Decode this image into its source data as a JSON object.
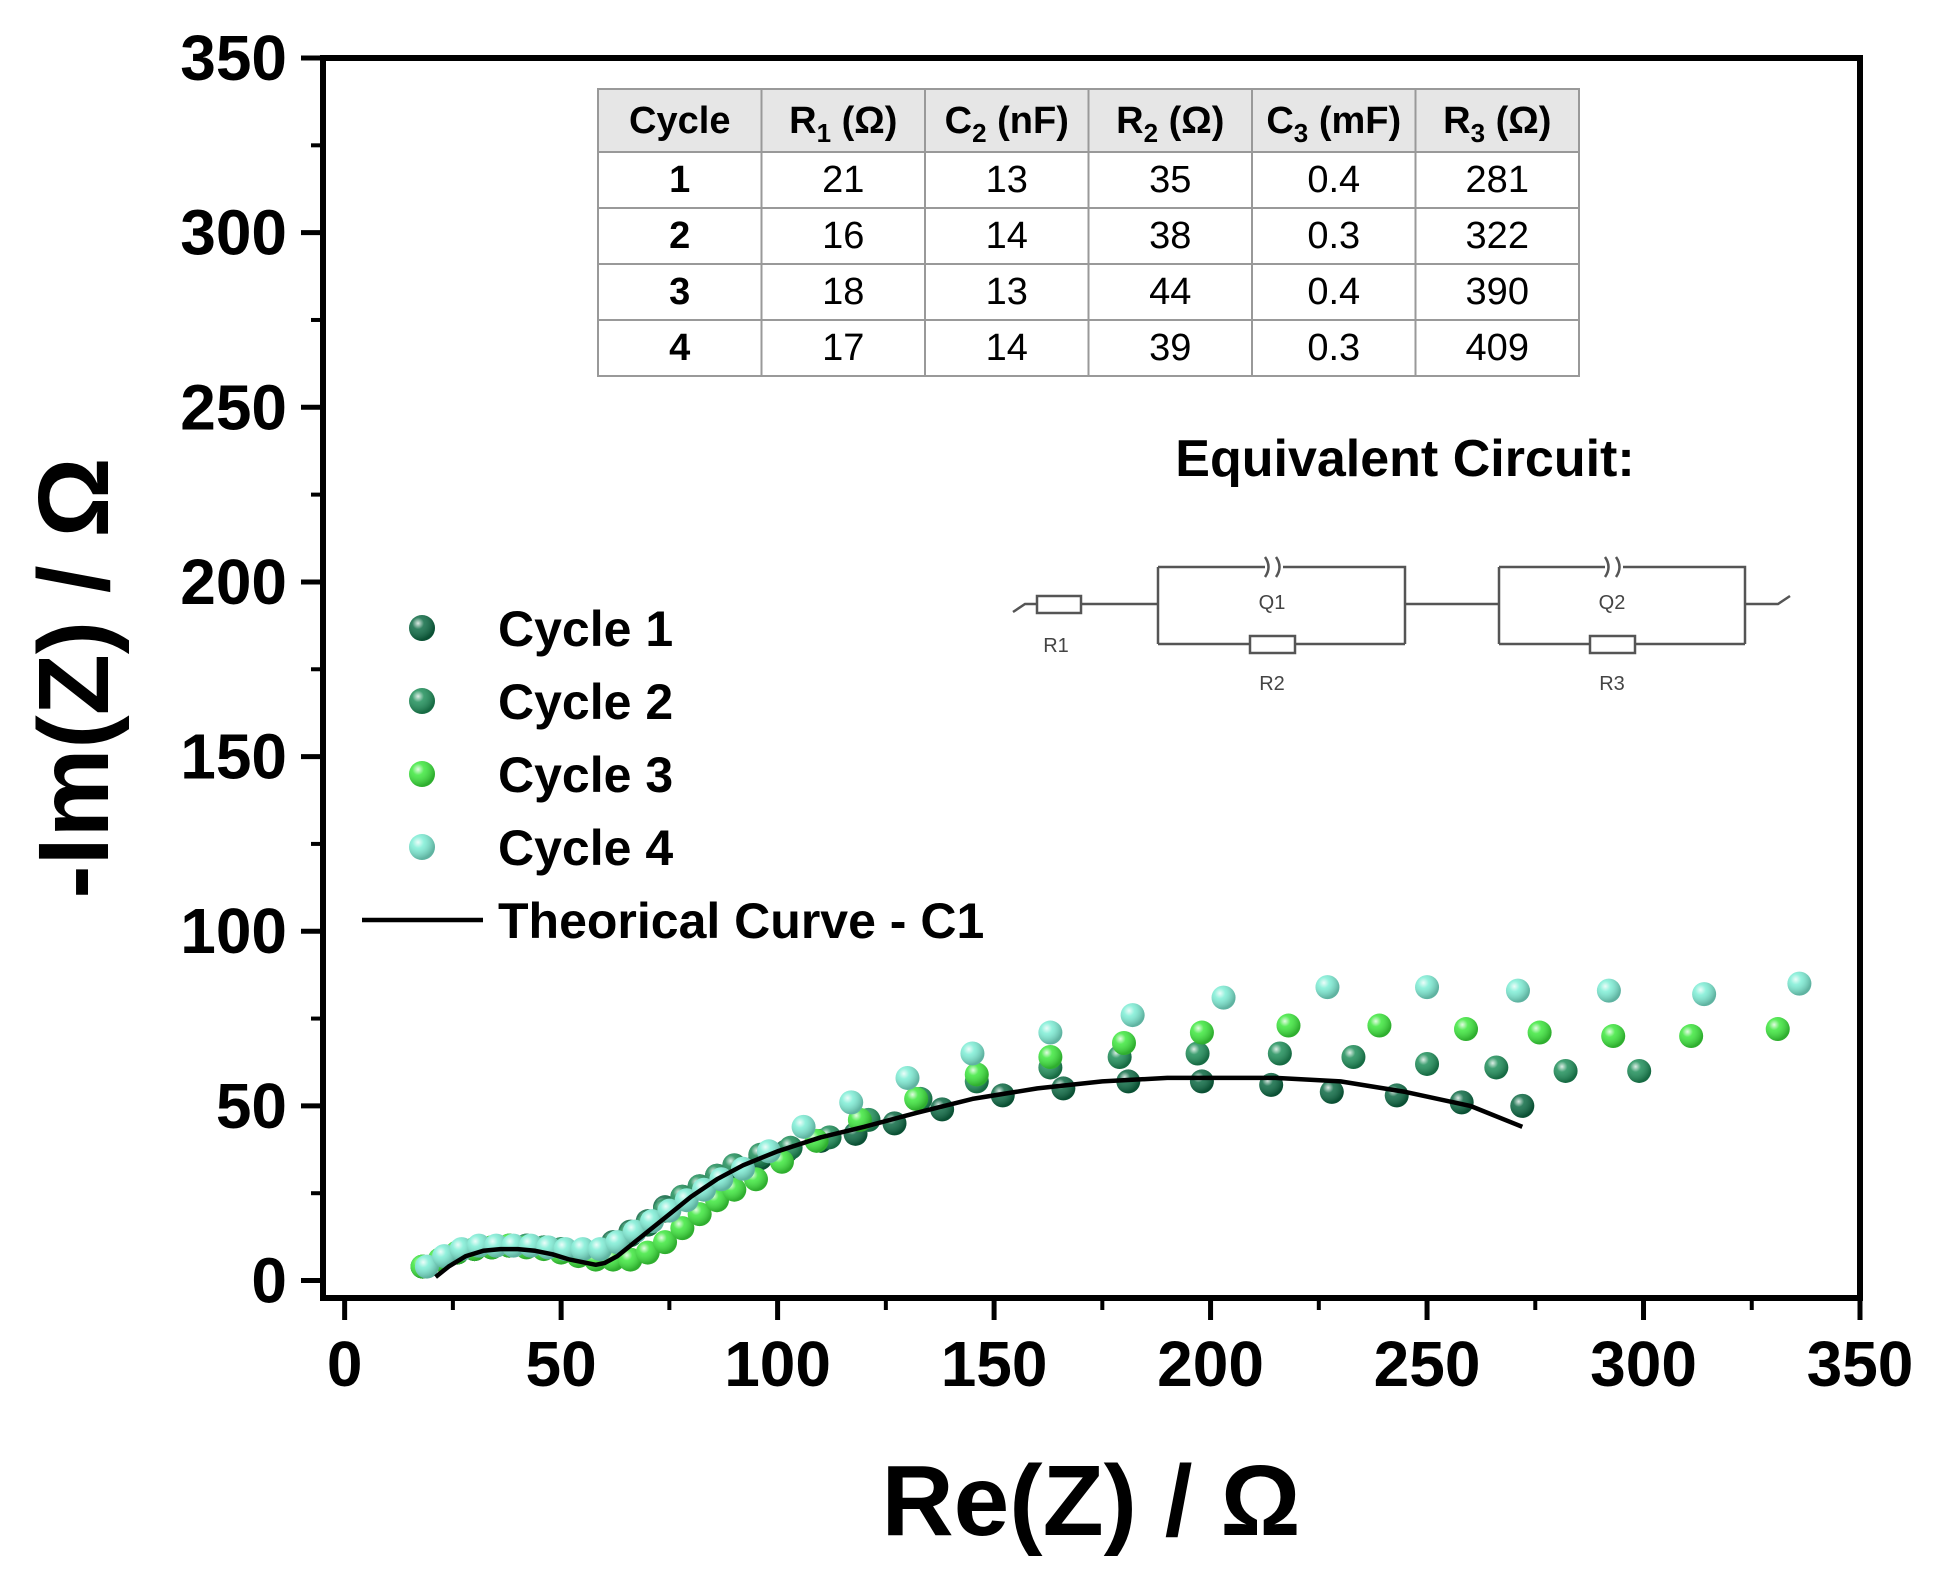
{
  "chart_data": {
    "type": "scatter",
    "title": "",
    "xlabel": "Re(Z) / Ω",
    "ylabel": "-Im(Z) / Ω",
    "xlim": [
      -5,
      350
    ],
    "ylim": [
      -5,
      350
    ],
    "xticks": [
      0,
      50,
      100,
      150,
      200,
      250,
      300,
      350
    ],
    "yticks": [
      0,
      50,
      100,
      150,
      200,
      250,
      300,
      350
    ],
    "grid": false,
    "legend_position": "left",
    "series": [
      {
        "name": "Cycle 1",
        "color": "#0e6b45",
        "kind": "points",
        "x": [
          18,
          22,
          26,
          30,
          34,
          38,
          42,
          46,
          50,
          54,
          58,
          62,
          66,
          70,
          74,
          78,
          82,
          86,
          90,
          96,
          102,
          110,
          118,
          127,
          138,
          152,
          166,
          181,
          198,
          214,
          228,
          243,
          258,
          272
        ],
        "y": [
          4,
          6,
          8,
          9,
          9.5,
          10,
          10,
          9.5,
          9,
          8,
          8,
          11,
          14,
          17,
          21,
          24,
          27,
          30,
          32,
          35,
          37,
          40,
          42,
          45,
          49,
          53,
          55,
          57,
          57,
          56,
          54,
          53,
          51,
          50
        ]
      },
      {
        "name": "Cycle 2",
        "color": "#1f8f5a",
        "kind": "points",
        "x": [
          18,
          22,
          26,
          30,
          34,
          38,
          42,
          46,
          50,
          54,
          58,
          62,
          66,
          70,
          74,
          78,
          82,
          86,
          90,
          96,
          103,
          112,
          121,
          133,
          146,
          163,
          179,
          197,
          216,
          233,
          250,
          266,
          282,
          299
        ],
        "y": [
          4,
          6,
          8,
          9,
          9.5,
          10,
          10,
          9.5,
          9,
          8,
          8,
          10,
          13,
          16,
          20,
          24,
          27,
          30,
          33,
          36,
          38,
          41,
          46,
          52,
          57,
          61,
          64,
          65,
          65,
          64,
          62,
          61,
          60,
          60
        ]
      },
      {
        "name": "Cycle 3",
        "color": "#3ee83e",
        "kind": "points",
        "x": [
          18,
          22,
          26,
          30,
          34,
          38,
          42,
          46,
          50,
          54,
          58,
          62,
          66,
          70,
          74,
          78,
          82,
          86,
          90,
          95,
          101,
          109,
          119,
          132,
          146,
          163,
          180,
          198,
          218,
          239,
          259,
          276,
          293,
          311,
          331
        ],
        "y": [
          4,
          6,
          8,
          9,
          9.5,
          10,
          9.5,
          9,
          8,
          7,
          6,
          6,
          6,
          8,
          11,
          15,
          19,
          23,
          26,
          29,
          34,
          40,
          46,
          52,
          59,
          64,
          68,
          71,
          73,
          73,
          72,
          71,
          70,
          70,
          72
        ]
      },
      {
        "name": "Cycle 4",
        "color": "#7feed6",
        "kind": "points",
        "x": [
          19,
          23,
          27,
          31,
          35,
          39,
          43,
          47,
          51,
          55,
          59,
          63,
          67,
          71,
          75,
          79,
          83,
          87,
          92,
          98,
          106,
          117,
          130,
          145,
          163,
          182,
          203,
          227,
          250,
          271,
          292,
          314,
          336
        ],
        "y": [
          4,
          7,
          9,
          10,
          10,
          10,
          10,
          9.5,
          9,
          9,
          9,
          11,
          14,
          17,
          20,
          23,
          26,
          29,
          32,
          37,
          44,
          51,
          58,
          65,
          71,
          76,
          81,
          84,
          84,
          83,
          83,
          82,
          85
        ]
      },
      {
        "name": "Theorical Curve - C1",
        "color": "#000000",
        "kind": "line",
        "x": [
          21,
          24,
          28,
          32,
          36,
          40,
          44,
          48,
          52,
          56,
          58,
          60,
          63,
          66,
          70,
          75,
          80,
          86,
          92,
          100,
          110,
          120,
          132,
          145,
          160,
          175,
          190,
          200,
          215,
          230,
          245,
          260,
          272
        ],
        "y": [
          1,
          4,
          7,
          8.5,
          9,
          9,
          8.5,
          7.5,
          6,
          5,
          4.5,
          5,
          7,
          10,
          14,
          19,
          24,
          29,
          33,
          37,
          41,
          44,
          48,
          52,
          55,
          57,
          58,
          58,
          58,
          57,
          54,
          50,
          44
        ]
      }
    ]
  },
  "table": {
    "headers": [
      {
        "main": "Cycle",
        "sub": "",
        "unit": ""
      },
      {
        "main": "R",
        "sub": "1",
        "unit": " (Ω)"
      },
      {
        "main": "C",
        "sub": "2",
        "unit": " (nF)"
      },
      {
        "main": "R",
        "sub": "2",
        "unit": " (Ω)"
      },
      {
        "main": "C",
        "sub": "3",
        "unit": " (mF)"
      },
      {
        "main": "R",
        "sub": "3",
        "unit": " (Ω)"
      }
    ],
    "rows": [
      [
        "1",
        "21",
        "13",
        "35",
        "0.4",
        "281"
      ],
      [
        "2",
        "16",
        "14",
        "38",
        "0.3",
        "322"
      ],
      [
        "3",
        "18",
        "13",
        "44",
        "0.4",
        "390"
      ],
      [
        "4",
        "17",
        "14",
        "39",
        "0.3",
        "409"
      ]
    ]
  },
  "circuit": {
    "title": "Equivalent Circuit:",
    "labels": {
      "r1": "R1",
      "q1": "Q1",
      "r2": "R2",
      "q2": "Q2",
      "r3": "R3"
    }
  }
}
